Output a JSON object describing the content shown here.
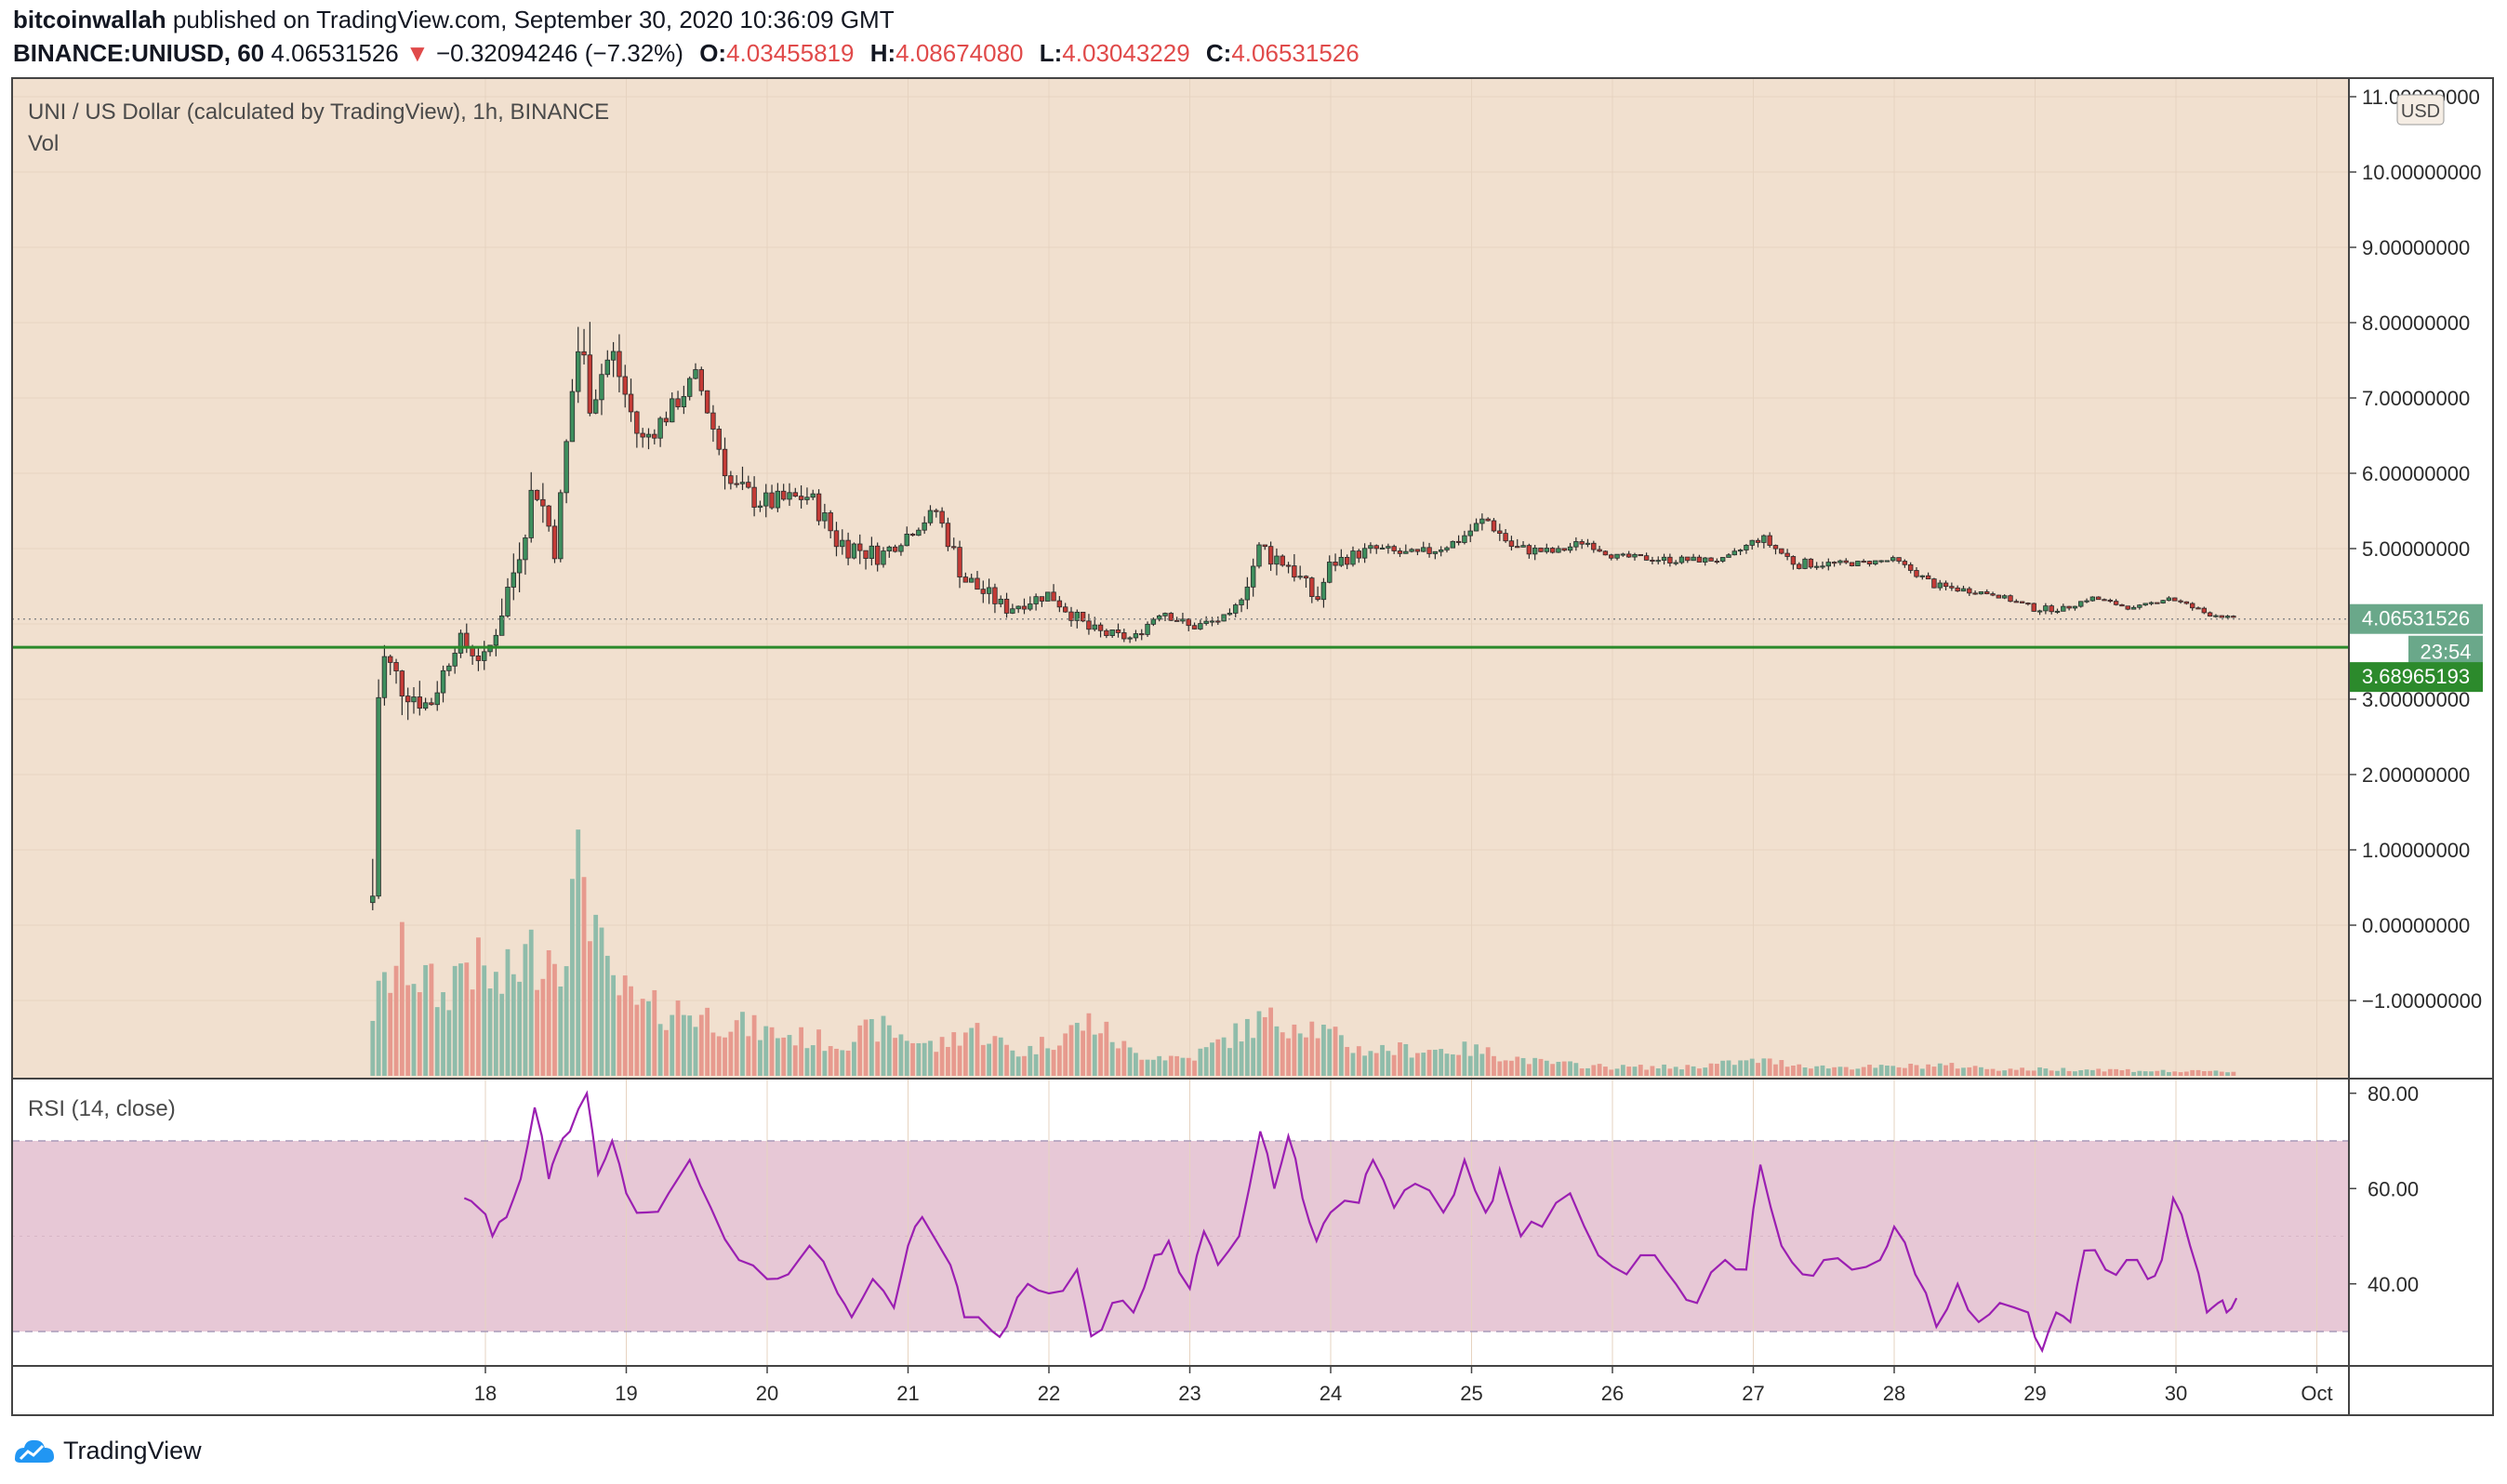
{
  "header": {
    "author": "bitcoinwallah",
    "published": "published on TradingView.com, September 30, 2020 10:36:09 GMT",
    "symbol": "BINANCE:UNIUSD, 60",
    "last": "4.06531526",
    "change": "−0.32094246 (−7.32%)",
    "o_label": "O:",
    "o": "4.03455819",
    "h_label": "H:",
    "h": "4.08674080",
    "l_label": "L:",
    "l": "4.03043229",
    "c_label": "C:",
    "c": "4.06531526"
  },
  "legend": {
    "main": "UNI / US Dollar (calculated by TradingView), 1h, BINANCE",
    "vol": "Vol",
    "rsi": "RSI (14, close)"
  },
  "currency_badge": "USD",
  "price_tags": {
    "last_price": "4.06531526",
    "countdown": "23:54",
    "support": "3.68965193"
  },
  "footer": {
    "brand": "TradingView"
  },
  "colors": {
    "background": "#f1e0cf",
    "up": "#3e8f5e",
    "down": "#c43b36",
    "vol_up": "#8fbcaa",
    "vol_down": "#e79a8e",
    "support_line": "#2a8a2a",
    "rsi_line": "#9b1fb2",
    "rsi_band": "#e7c8d6",
    "last_price_tag": "#6aa88a",
    "support_tag": "#2c8a2c"
  },
  "chart_data": [
    {
      "type": "candlestick",
      "title": "UNI / US Dollar (calculated by TradingView), 1h, BINANCE",
      "x": [
        "18",
        "19",
        "20",
        "21",
        "22",
        "23",
        "24",
        "25",
        "26",
        "27",
        "28",
        "29",
        "30",
        "Oct"
      ],
      "y_ticks": [
        "−1.00000000",
        "0.00000000",
        "1.00000000",
        "2.00000000",
        "3.00000000",
        "4.00000000",
        "5.00000000",
        "6.00000000",
        "7.00000000",
        "8.00000000",
        "9.00000000",
        "10.00000000",
        "11.00000000"
      ],
      "ylim": [
        -2.0,
        11.5
      ],
      "support_level": 3.68965193,
      "last_price": 4.06531526,
      "close_path": [
        {
          "day": 17.2,
          "close": 0.4,
          "high": 4.4,
          "low": 0.2
        },
        {
          "day": 17.25,
          "close": 3.6,
          "high": 4.4,
          "low": 2.5
        },
        {
          "day": 17.4,
          "close": 3.2,
          "high": 3.9,
          "low": 2.6
        },
        {
          "day": 17.6,
          "close": 2.9,
          "high": 3.4,
          "low": 2.5
        },
        {
          "day": 17.8,
          "close": 3.8,
          "high": 4.0,
          "low": 3.3
        },
        {
          "day": 18.0,
          "close": 3.5,
          "high": 3.8,
          "low": 3.0
        },
        {
          "day": 18.2,
          "close": 4.7,
          "high": 5.0,
          "low": 3.6
        },
        {
          "day": 18.35,
          "close": 5.9,
          "high": 6.1,
          "low": 4.8
        },
        {
          "day": 18.5,
          "close": 5.0,
          "high": 6.0,
          "low": 4.8
        },
        {
          "day": 18.65,
          "close": 7.7,
          "high": 8.0,
          "low": 5.9
        },
        {
          "day": 18.75,
          "close": 7.1,
          "high": 8.6,
          "low": 6.2
        },
        {
          "day": 18.9,
          "close": 7.6,
          "high": 7.8,
          "low": 6.6
        },
        {
          "day": 19.1,
          "close": 6.4,
          "high": 7.0,
          "low": 6.1
        },
        {
          "day": 19.3,
          "close": 6.8,
          "high": 7.1,
          "low": 6.3
        },
        {
          "day": 19.5,
          "close": 7.3,
          "high": 7.4,
          "low": 6.7
        },
        {
          "day": 19.75,
          "close": 5.8,
          "high": 6.6,
          "low": 5.5
        },
        {
          "day": 20.0,
          "close": 5.6,
          "high": 6.1,
          "low": 5.2
        },
        {
          "day": 20.3,
          "close": 5.7,
          "high": 6.0,
          "low": 5.3
        },
        {
          "day": 20.5,
          "close": 5.1,
          "high": 5.9,
          "low": 4.8
        },
        {
          "day": 20.8,
          "close": 4.9,
          "high": 5.3,
          "low": 4.6
        },
        {
          "day": 21.0,
          "close": 5.2,
          "high": 5.4,
          "low": 4.9
        },
        {
          "day": 21.2,
          "close": 5.5,
          "high": 5.6,
          "low": 5.1
        },
        {
          "day": 21.4,
          "close": 4.6,
          "high": 5.3,
          "low": 4.3
        },
        {
          "day": 21.7,
          "close": 4.2,
          "high": 4.5,
          "low": 4.0
        },
        {
          "day": 22.0,
          "close": 4.4,
          "high": 4.6,
          "low": 4.1
        },
        {
          "day": 22.3,
          "close": 3.9,
          "high": 4.3,
          "low": 3.7
        },
        {
          "day": 22.6,
          "close": 3.8,
          "high": 4.0,
          "low": 3.7
        },
        {
          "day": 22.8,
          "close": 4.2,
          "high": 4.3,
          "low": 3.8
        },
        {
          "day": 23.0,
          "close": 3.95,
          "high": 4.2,
          "low": 3.8
        },
        {
          "day": 23.3,
          "close": 4.1,
          "high": 4.2,
          "low": 3.9
        },
        {
          "day": 23.5,
          "close": 5.0,
          "high": 5.3,
          "low": 4.2
        },
        {
          "day": 23.7,
          "close": 4.8,
          "high": 5.2,
          "low": 4.4
        },
        {
          "day": 23.9,
          "close": 4.3,
          "high": 4.8,
          "low": 4.1
        },
        {
          "day": 24.0,
          "close": 4.8,
          "high": 4.9,
          "low": 4.3
        },
        {
          "day": 24.3,
          "close": 5.0,
          "high": 5.2,
          "low": 4.8
        },
        {
          "day": 24.6,
          "close": 4.9,
          "high": 5.2,
          "low": 4.7
        },
        {
          "day": 24.9,
          "close": 5.1,
          "high": 5.3,
          "low": 4.9
        },
        {
          "day": 25.1,
          "close": 5.4,
          "high": 5.5,
          "low": 5.0
        },
        {
          "day": 25.3,
          "close": 5.0,
          "high": 5.4,
          "low": 4.9
        },
        {
          "day": 25.6,
          "close": 4.95,
          "high": 5.1,
          "low": 4.8
        },
        {
          "day": 25.8,
          "close": 5.1,
          "high": 5.2,
          "low": 4.9
        },
        {
          "day": 26.0,
          "close": 4.9,
          "high": 5.0,
          "low": 4.8
        },
        {
          "day": 26.4,
          "close": 4.85,
          "high": 5.0,
          "low": 4.7
        },
        {
          "day": 26.8,
          "close": 4.85,
          "high": 4.95,
          "low": 4.75
        },
        {
          "day": 27.05,
          "close": 5.15,
          "high": 5.2,
          "low": 4.8
        },
        {
          "day": 27.3,
          "close": 4.8,
          "high": 5.1,
          "low": 4.7
        },
        {
          "day": 27.7,
          "close": 4.8,
          "high": 4.9,
          "low": 4.7
        },
        {
          "day": 28.0,
          "close": 4.85,
          "high": 4.95,
          "low": 4.75
        },
        {
          "day": 28.3,
          "close": 4.5,
          "high": 4.75,
          "low": 4.45
        },
        {
          "day": 28.7,
          "close": 4.4,
          "high": 4.5,
          "low": 4.35
        },
        {
          "day": 29.0,
          "close": 4.2,
          "high": 4.35,
          "low": 4.1
        },
        {
          "day": 29.2,
          "close": 4.2,
          "high": 4.3,
          "low": 4.1
        },
        {
          "day": 29.4,
          "close": 4.35,
          "high": 4.4,
          "low": 4.25
        },
        {
          "day": 29.7,
          "close": 4.2,
          "high": 4.3,
          "low": 4.15
        },
        {
          "day": 29.95,
          "close": 4.35,
          "high": 4.45,
          "low": 4.3
        },
        {
          "day": 30.2,
          "close": 4.15,
          "high": 4.3,
          "low": 4.05
        },
        {
          "day": 30.43,
          "close": 4.065,
          "high": 4.087,
          "low": 4.03
        }
      ]
    },
    {
      "type": "bar",
      "title": "Vol",
      "volume_profile": [
        {
          "day": 17.2,
          "rel": 0.3
        },
        {
          "day": 17.4,
          "rel": 0.55
        },
        {
          "day": 17.7,
          "rel": 0.35
        },
        {
          "day": 17.85,
          "rel": 0.55
        },
        {
          "day": 18.1,
          "rel": 0.4
        },
        {
          "day": 18.3,
          "rel": 0.55
        },
        {
          "day": 18.55,
          "rel": 0.6
        },
        {
          "day": 18.7,
          "rel": 1.0
        },
        {
          "day": 18.85,
          "rel": 0.45
        },
        {
          "day": 19.1,
          "rel": 0.3
        },
        {
          "day": 19.4,
          "rel": 0.3
        },
        {
          "day": 19.7,
          "rel": 0.25
        },
        {
          "day": 20.0,
          "rel": 0.2
        },
        {
          "day": 20.5,
          "rel": 0.15
        },
        {
          "day": 20.8,
          "rel": 0.22
        },
        {
          "day": 21.2,
          "rel": 0.13
        },
        {
          "day": 21.45,
          "rel": 0.22
        },
        {
          "day": 21.8,
          "rel": 0.1
        },
        {
          "day": 22.3,
          "rel": 0.25
        },
        {
          "day": 22.6,
          "rel": 0.1
        },
        {
          "day": 23.0,
          "rel": 0.08
        },
        {
          "day": 23.5,
          "rel": 0.25
        },
        {
          "day": 23.8,
          "rel": 0.25
        },
        {
          "day": 24.2,
          "rel": 0.12
        },
        {
          "day": 24.6,
          "rel": 0.12
        },
        {
          "day": 25.0,
          "rel": 0.12
        },
        {
          "day": 25.5,
          "rel": 0.06
        },
        {
          "day": 26.0,
          "rel": 0.04
        },
        {
          "day": 26.5,
          "rel": 0.04
        },
        {
          "day": 27.05,
          "rel": 0.07
        },
        {
          "day": 27.5,
          "rel": 0.04
        },
        {
          "day": 28.0,
          "rel": 0.04
        },
        {
          "day": 28.3,
          "rel": 0.05
        },
        {
          "day": 28.8,
          "rel": 0.03
        },
        {
          "day": 29.4,
          "rel": 0.03
        },
        {
          "day": 30.0,
          "rel": 0.02
        },
        {
          "day": 30.43,
          "rel": 0.02
        }
      ]
    },
    {
      "type": "line",
      "title": "RSI (14, close)",
      "y_ticks": [
        "80.00",
        "60.00",
        "40.00"
      ],
      "ylim": [
        23,
        81
      ],
      "band": [
        30,
        70
      ],
      "series": [
        {
          "values": [
            {
              "day": 17.85,
              "rsi": 58
            },
            {
              "day": 17.95,
              "rsi": 56
            },
            {
              "day": 18.05,
              "rsi": 50
            },
            {
              "day": 18.15,
              "rsi": 54
            },
            {
              "day": 18.25,
              "rsi": 62
            },
            {
              "day": 18.35,
              "rsi": 77
            },
            {
              "day": 18.45,
              "rsi": 62
            },
            {
              "day": 18.5,
              "rsi": 67
            },
            {
              "day": 18.6,
              "rsi": 72
            },
            {
              "day": 18.72,
              "rsi": 80
            },
            {
              "day": 18.8,
              "rsi": 63
            },
            {
              "day": 18.9,
              "rsi": 70
            },
            {
              "day": 19.0,
              "rsi": 59
            },
            {
              "day": 19.15,
              "rsi": 55
            },
            {
              "day": 19.3,
              "rsi": 59
            },
            {
              "day": 19.45,
              "rsi": 66
            },
            {
              "day": 19.6,
              "rsi": 56
            },
            {
              "day": 19.8,
              "rsi": 45
            },
            {
              "day": 20.0,
              "rsi": 41
            },
            {
              "day": 20.15,
              "rsi": 42
            },
            {
              "day": 20.3,
              "rsi": 48
            },
            {
              "day": 20.5,
              "rsi": 38
            },
            {
              "day": 20.6,
              "rsi": 33
            },
            {
              "day": 20.75,
              "rsi": 41
            },
            {
              "day": 20.9,
              "rsi": 35
            },
            {
              "day": 21.0,
              "rsi": 48
            },
            {
              "day": 21.1,
              "rsi": 54
            },
            {
              "day": 21.3,
              "rsi": 44
            },
            {
              "day": 21.4,
              "rsi": 33
            },
            {
              "day": 21.6,
              "rsi": 30
            },
            {
              "day": 21.7,
              "rsi": 31
            },
            {
              "day": 21.85,
              "rsi": 40
            },
            {
              "day": 22.0,
              "rsi": 38
            },
            {
              "day": 22.2,
              "rsi": 43
            },
            {
              "day": 22.3,
              "rsi": 29
            },
            {
              "day": 22.45,
              "rsi": 36
            },
            {
              "day": 22.6,
              "rsi": 34
            },
            {
              "day": 22.75,
              "rsi": 46
            },
            {
              "day": 22.85,
              "rsi": 49
            },
            {
              "day": 23.0,
              "rsi": 39
            },
            {
              "day": 23.1,
              "rsi": 51
            },
            {
              "day": 23.2,
              "rsi": 44
            },
            {
              "day": 23.35,
              "rsi": 50
            },
            {
              "day": 23.5,
              "rsi": 72
            },
            {
              "day": 23.6,
              "rsi": 60
            },
            {
              "day": 23.7,
              "rsi": 71
            },
            {
              "day": 23.8,
              "rsi": 58
            },
            {
              "day": 23.9,
              "rsi": 49
            },
            {
              "day": 24.0,
              "rsi": 55
            },
            {
              "day": 24.2,
              "rsi": 57
            },
            {
              "day": 24.3,
              "rsi": 66
            },
            {
              "day": 24.45,
              "rsi": 56
            },
            {
              "day": 24.6,
              "rsi": 61
            },
            {
              "day": 24.8,
              "rsi": 55
            },
            {
              "day": 24.95,
              "rsi": 66
            },
            {
              "day": 25.1,
              "rsi": 55
            },
            {
              "day": 25.2,
              "rsi": 64
            },
            {
              "day": 25.35,
              "rsi": 50
            },
            {
              "day": 25.5,
              "rsi": 52
            },
            {
              "day": 25.7,
              "rsi": 59
            },
            {
              "day": 25.9,
              "rsi": 46
            },
            {
              "day": 26.1,
              "rsi": 42
            },
            {
              "day": 26.3,
              "rsi": 46
            },
            {
              "day": 26.45,
              "rsi": 40
            },
            {
              "day": 26.6,
              "rsi": 36
            },
            {
              "day": 26.8,
              "rsi": 45
            },
            {
              "day": 26.95,
              "rsi": 43
            },
            {
              "day": 27.05,
              "rsi": 65
            },
            {
              "day": 27.2,
              "rsi": 48
            },
            {
              "day": 27.35,
              "rsi": 42
            },
            {
              "day": 27.5,
              "rsi": 45
            },
            {
              "day": 27.7,
              "rsi": 43
            },
            {
              "day": 27.9,
              "rsi": 45
            },
            {
              "day": 28.0,
              "rsi": 52
            },
            {
              "day": 28.15,
              "rsi": 42
            },
            {
              "day": 28.3,
              "rsi": 31
            },
            {
              "day": 28.45,
              "rsi": 40
            },
            {
              "day": 28.6,
              "rsi": 32
            },
            {
              "day": 28.75,
              "rsi": 36
            },
            {
              "day": 28.95,
              "rsi": 34
            },
            {
              "day": 29.05,
              "rsi": 26
            },
            {
              "day": 29.15,
              "rsi": 34
            },
            {
              "day": 29.25,
              "rsi": 32
            },
            {
              "day": 29.35,
              "rsi": 47
            },
            {
              "day": 29.5,
              "rsi": 43
            },
            {
              "day": 29.65,
              "rsi": 45
            },
            {
              "day": 29.8,
              "rsi": 41
            },
            {
              "day": 29.9,
              "rsi": 45
            },
            {
              "day": 29.98,
              "rsi": 58
            },
            {
              "day": 30.1,
              "rsi": 48
            },
            {
              "day": 30.22,
              "rsi": 34
            },
            {
              "day": 30.3,
              "rsi": 36
            },
            {
              "day": 30.36,
              "rsi": 34
            },
            {
              "day": 30.43,
              "rsi": 37
            }
          ]
        }
      ]
    }
  ]
}
